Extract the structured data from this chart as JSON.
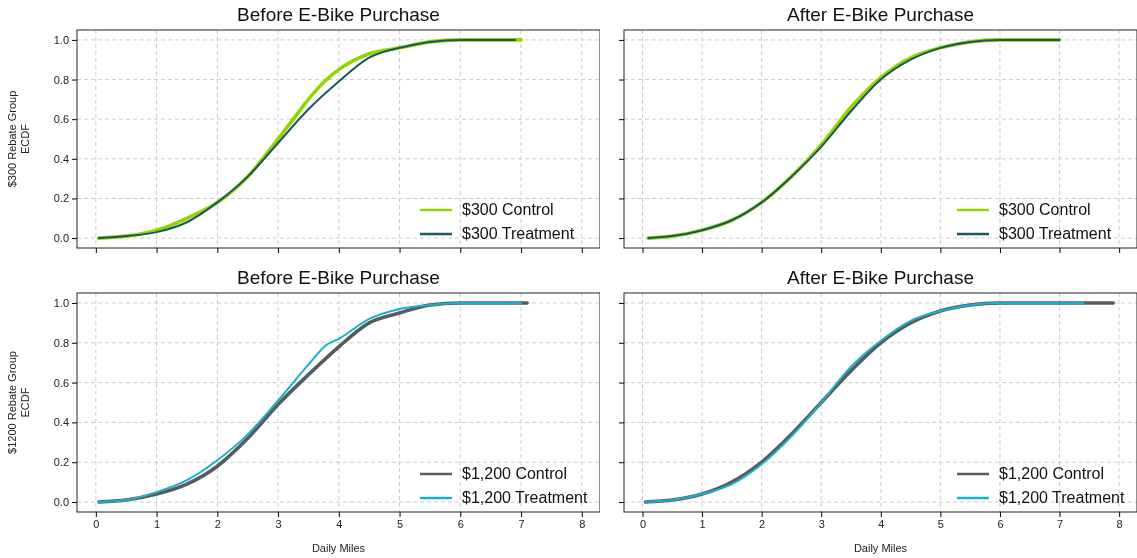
{
  "chart_data": [
    {
      "type": "line",
      "title": "Before E-Bike Purchase",
      "ylabel": "$300 Rebate Group\nECDF",
      "xlim": [
        -0.31,
        8.3
      ],
      "ylim": [
        -0.05,
        1.05
      ],
      "xticks": [
        {
          "value": 0,
          "label": null
        },
        {
          "value": 1,
          "label": null
        },
        {
          "value": 2,
          "label": null
        },
        {
          "value": 3,
          "label": null
        },
        {
          "value": 4,
          "label": null
        },
        {
          "value": 5,
          "label": null
        },
        {
          "value": 6,
          "label": null
        },
        {
          "value": 7,
          "label": null
        },
        {
          "value": 8,
          "label": null
        }
      ],
      "yticks": [
        {
          "value": 0,
          "label": "0.0"
        },
        {
          "value": 0.2,
          "label": "0.2"
        },
        {
          "value": 0.4,
          "label": "0.4"
        },
        {
          "value": 0.6,
          "label": "0.6"
        },
        {
          "value": 0.8,
          "label": "0.8"
        },
        {
          "value": 1,
          "label": "1.0"
        }
      ],
      "tick_labels": "y",
      "grid": true,
      "legend": "bottom right",
      "series": [
        {
          "name": "$300 Control",
          "color": "#96d400",
          "x": [
            0.05,
            0.5,
            1.0,
            1.5,
            2.0,
            2.5,
            3.0,
            3.3,
            3.5,
            3.8,
            4.0,
            4.5,
            5.0,
            5.5,
            6.0,
            7.0
          ],
          "values": [
            0,
            0.01,
            0.04,
            0.1,
            0.18,
            0.31,
            0.5,
            0.62,
            0.7,
            0.8,
            0.85,
            0.93,
            0.96,
            0.99,
            1.0,
            1.0
          ]
        },
        {
          "name": "$300 Treatment",
          "color": "#145a5f",
          "x": [
            0.05,
            0.5,
            1.0,
            1.5,
            2.0,
            2.5,
            3.0,
            3.5,
            4.0,
            4.5,
            5.0,
            5.5,
            6.0,
            6.9
          ],
          "values": [
            0,
            0.01,
            0.03,
            0.08,
            0.18,
            0.31,
            0.48,
            0.65,
            0.79,
            0.91,
            0.96,
            0.99,
            1.0,
            1.0
          ]
        }
      ]
    },
    {
      "type": "line",
      "title": "After E-Bike Purchase",
      "xlim": [
        -0.31,
        8.3
      ],
      "ylim": [
        -0.05,
        1.05
      ],
      "xticks": [
        {
          "value": 0,
          "label": null
        },
        {
          "value": 1,
          "label": null
        },
        {
          "value": 2,
          "label": null
        },
        {
          "value": 3,
          "label": null
        },
        {
          "value": 4,
          "label": null
        },
        {
          "value": 5,
          "label": null
        },
        {
          "value": 6,
          "label": null
        },
        {
          "value": 7,
          "label": null
        },
        {
          "value": 8,
          "label": null
        }
      ],
      "yticks": [
        {
          "value": 0,
          "label": null
        },
        {
          "value": 0.2,
          "label": null
        },
        {
          "value": 0.4,
          "label": null
        },
        {
          "value": 0.6,
          "label": null
        },
        {
          "value": 0.8,
          "label": null
        },
        {
          "value": 1,
          "label": null
        }
      ],
      "tick_labels": false,
      "grid": true,
      "legend": "bottom right",
      "series": [
        {
          "name": "$300 Control",
          "color": "#96d400",
          "x": [
            0.1,
            0.5,
            1.0,
            1.5,
            2.0,
            2.5,
            3.0,
            3.5,
            4.0,
            4.5,
            5.0,
            5.5,
            6.0,
            7.0
          ],
          "values": [
            0,
            0.01,
            0.04,
            0.09,
            0.18,
            0.31,
            0.47,
            0.66,
            0.81,
            0.91,
            0.96,
            0.99,
            1.0,
            1.0
          ]
        },
        {
          "name": "$300 Treatment",
          "color": "#145a5f",
          "x": [
            0.1,
            0.5,
            1.0,
            1.5,
            2.0,
            2.5,
            3.0,
            3.5,
            4.0,
            4.5,
            5.0,
            5.5,
            6.0,
            7.0
          ],
          "values": [
            0,
            0.01,
            0.04,
            0.09,
            0.18,
            0.31,
            0.46,
            0.64,
            0.8,
            0.9,
            0.96,
            0.99,
            1.0,
            1.0
          ]
        }
      ]
    },
    {
      "type": "line",
      "title": "Before E-Bike Purchase",
      "xlabel": "Daily Miles",
      "ylabel": "$1200 Rebate Group\nECDF",
      "xlim": [
        -0.31,
        8.3
      ],
      "ylim": [
        -0.05,
        1.05
      ],
      "xticks": [
        0,
        1,
        2,
        3,
        4,
        5,
        6,
        7,
        8
      ],
      "yticks": [
        {
          "value": 0,
          "label": "0.0"
        },
        {
          "value": 0.2,
          "label": "0.2"
        },
        {
          "value": 0.4,
          "label": "0.4"
        },
        {
          "value": 0.6,
          "label": "0.6"
        },
        {
          "value": 0.8,
          "label": "0.8"
        },
        {
          "value": 1,
          "label": "1.0"
        }
      ],
      "grid": true,
      "legend": "bottom right",
      "series": [
        {
          "name": "$1,200 Control",
          "color": "#555b61",
          "x": [
            0.05,
            0.5,
            1.0,
            1.5,
            2.0,
            2.5,
            3.0,
            3.5,
            4.0,
            4.5,
            5.0,
            5.5,
            6.0,
            7.1
          ],
          "values": [
            0,
            0.01,
            0.04,
            0.09,
            0.18,
            0.32,
            0.49,
            0.64,
            0.78,
            0.9,
            0.95,
            0.99,
            1.0,
            1.0
          ]
        },
        {
          "name": "$1,200 Treatment",
          "color": "#1aafcc",
          "x": [
            0.05,
            0.5,
            1.0,
            1.5,
            2.0,
            2.5,
            3.0,
            3.5,
            3.8,
            4.0,
            4.5,
            5.0,
            5.5,
            6.0,
            7.0
          ],
          "values": [
            0,
            0.01,
            0.05,
            0.11,
            0.21,
            0.34,
            0.51,
            0.69,
            0.79,
            0.82,
            0.92,
            0.97,
            0.99,
            1.0,
            1.0
          ]
        }
      ]
    },
    {
      "type": "line",
      "title": "After E-Bike Purchase",
      "xlabel": "Daily Miles",
      "xlim": [
        -0.31,
        8.3
      ],
      "ylim": [
        -0.05,
        1.05
      ],
      "xticks": [
        0,
        1,
        2,
        3,
        4,
        5,
        6,
        7,
        8
      ],
      "yticks": [
        {
          "value": 0,
          "label": null
        },
        {
          "value": 0.2,
          "label": null
        },
        {
          "value": 0.4,
          "label": null
        },
        {
          "value": 0.6,
          "label": null
        },
        {
          "value": 0.8,
          "label": null
        },
        {
          "value": 1,
          "label": null
        }
      ],
      "tick_labels": "x",
      "grid": true,
      "legend": "bottom right",
      "series": [
        {
          "name": "$1,200 Control",
          "color": "#555b61",
          "x": [
            0.05,
            0.5,
            1.0,
            1.5,
            2.0,
            2.5,
            3.0,
            3.5,
            4.0,
            4.5,
            5.0,
            5.5,
            6.0,
            7.9
          ],
          "values": [
            0,
            0.01,
            0.04,
            0.1,
            0.2,
            0.34,
            0.5,
            0.66,
            0.8,
            0.9,
            0.96,
            0.99,
            1.0,
            1.0
          ]
        },
        {
          "name": "$1,200 Treatment",
          "color": "#1aafcc",
          "x": [
            0.05,
            0.5,
            1.0,
            1.5,
            2.0,
            2.5,
            3.0,
            3.5,
            4.0,
            4.5,
            5.0,
            5.5,
            6.0,
            7.4
          ],
          "values": [
            0,
            0.01,
            0.04,
            0.09,
            0.19,
            0.33,
            0.5,
            0.68,
            0.81,
            0.91,
            0.96,
            0.99,
            1.0,
            1.0
          ]
        }
      ]
    }
  ]
}
